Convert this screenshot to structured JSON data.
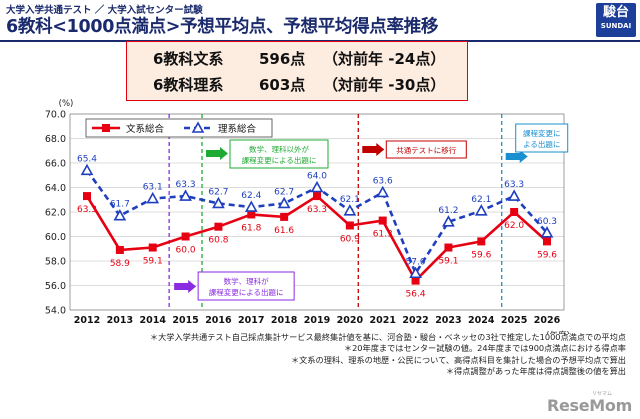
{
  "header": {
    "subtitle": "大学入学共通テスト ／ 大学入試センター試験",
    "title": "6教科<1000点満点>予想平均点、予想平均得点率推移",
    "logo_main": "駿台",
    "logo_sub": "SUNDAI"
  },
  "summary": {
    "rows": [
      {
        "label": "6教科文系",
        "score": "596点",
        "diff": "（対前年 -24点）"
      },
      {
        "label": "6教科理系",
        "score": "603点",
        "diff": "（対前年 -30点）"
      }
    ]
  },
  "chart_data": {
    "type": "line",
    "title": "",
    "ylabel": "(%)",
    "xlabel": "(年度)",
    "ylim": [
      54.0,
      70.0
    ],
    "yticks": [
      "54.0",
      "56.0",
      "58.0",
      "60.0",
      "62.0",
      "64.0",
      "66.0",
      "68.0",
      "70.0"
    ],
    "grid": true,
    "legend_position": "top-left",
    "categories": [
      "2012",
      "2013",
      "2014",
      "2015",
      "2016",
      "2017",
      "2018",
      "2019",
      "2020",
      "2021",
      "2022",
      "2023",
      "2024",
      "2025",
      "2026"
    ],
    "series": [
      {
        "name": "文系総合",
        "color": "#e60012",
        "style": "solid",
        "values": [
          63.3,
          58.9,
          59.1,
          60.0,
          60.8,
          61.8,
          61.6,
          63.3,
          60.9,
          61.3,
          56.4,
          59.1,
          59.6,
          62.0,
          59.6
        ],
        "labels": [
          "63.3",
          "58.9",
          "59.1",
          "60.0",
          "60.8",
          "61.8",
          "61.6",
          "63.3",
          "60.9",
          "61.3",
          "56.4",
          "59.1",
          "59.6",
          "62.0",
          "59.6"
        ]
      },
      {
        "name": "理系総合",
        "color": "#1f3fbf",
        "style": "dashed",
        "values": [
          65.4,
          61.7,
          63.1,
          63.3,
          62.7,
          62.4,
          62.7,
          64.0,
          62.1,
          63.6,
          57.0,
          61.2,
          62.1,
          63.3,
          60.3
        ],
        "labels": [
          "65.4",
          "61.7",
          "63.1",
          "63.3",
          "62.7",
          "62.4",
          "62.7",
          "64.0",
          "62.1",
          "63.6",
          "57.0",
          "61.2",
          "62.1",
          "63.3",
          "60.3"
        ]
      }
    ],
    "markers": [
      {
        "year": "2015",
        "color": "#8a2be2",
        "text_lines": [
          "数学、理科が",
          "課程変更による出題に"
        ]
      },
      {
        "year": "2016",
        "color": "#1faa33",
        "text_lines": [
          "数学、理科以外が",
          "課程変更による出題に"
        ]
      },
      {
        "year": "2020",
        "color": "#c00000",
        "text_lines": [
          "共通テストに移行"
        ]
      },
      {
        "year": "2025",
        "color": "#1a8fd0",
        "text_lines": [
          "課程変更に",
          "よる出題に"
        ]
      }
    ]
  },
  "notes": [
    "＊大学入学共通テスト自己採点集計サービス最終集計値を基に、河合塾・駿台・ベネッセの3社で推定した1000点満点での平均点",
    "＊20年度まではセンター試験の値。24年度までは900点満点における得点率",
    "＊文系の理科、理系の地歴・公民について、高得点科目を集計した場合の予想平均点で算出",
    "＊得点調整があった年度は得点調整後の値を算出"
  ],
  "watermark": "ReseMom",
  "watermark_small": "リセマム"
}
